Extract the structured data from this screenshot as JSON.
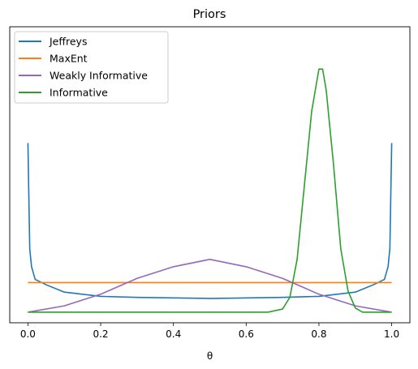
{
  "chart_data": {
    "type": "line",
    "title": "Priors",
    "xlabel": "θ",
    "ylabel": "",
    "xlim": [
      -0.05,
      1.05
    ],
    "ylim": [
      -0.1,
      2.7
    ],
    "yticks_shown": false,
    "grid": false,
    "legend_position": "top-left",
    "xticks": [
      0.0,
      0.2,
      0.4,
      0.6,
      0.8,
      1.0
    ],
    "xtick_labels": [
      "0.0",
      "0.2",
      "0.4",
      "0.6",
      "0.8",
      "1.0"
    ],
    "series": [
      {
        "name": "Jeffreys",
        "color": "#1f77b4",
        "x": [
          0.0,
          0.005,
          0.01,
          0.02,
          0.05,
          0.1,
          0.2,
          0.3,
          0.5,
          0.7,
          0.8,
          0.9,
          0.95,
          0.98,
          0.99,
          0.995,
          1.0
        ],
        "y": [
          1.6,
          0.6,
          0.43,
          0.31,
          0.26,
          0.19,
          0.15,
          0.14,
          0.13,
          0.14,
          0.15,
          0.19,
          0.26,
          0.31,
          0.43,
          0.6,
          1.6
        ]
      },
      {
        "name": "MaxEnt",
        "color": "#ff7f0e",
        "x": [
          0.0,
          1.0
        ],
        "y": [
          0.28,
          0.28
        ]
      },
      {
        "name": "Weakly  Informative",
        "color": "#9467bd",
        "x": [
          0.0,
          0.1,
          0.2,
          0.3,
          0.4,
          0.5,
          0.6,
          0.7,
          0.8,
          0.9,
          1.0
        ],
        "y": [
          0.0,
          0.06,
          0.17,
          0.32,
          0.43,
          0.5,
          0.43,
          0.32,
          0.17,
          0.06,
          0.0
        ]
      },
      {
        "name": "Informative",
        "color": "#2ca02c",
        "x": [
          0.0,
          0.66,
          0.7,
          0.72,
          0.74,
          0.76,
          0.78,
          0.8,
          0.81,
          0.82,
          0.84,
          0.86,
          0.88,
          0.9,
          0.92,
          1.0
        ],
        "y": [
          0.0,
          0.0,
          0.03,
          0.14,
          0.5,
          1.2,
          1.9,
          2.3,
          2.3,
          2.1,
          1.4,
          0.6,
          0.2,
          0.04,
          0.0,
          0.0
        ]
      }
    ]
  }
}
